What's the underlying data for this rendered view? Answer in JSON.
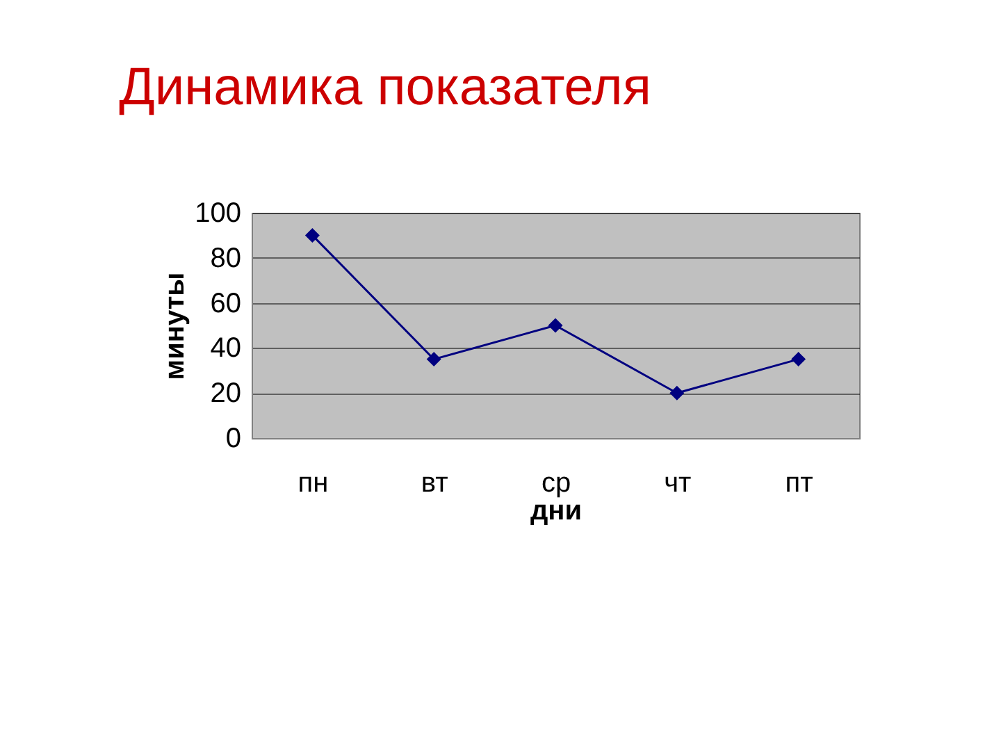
{
  "chart_data": {
    "type": "line",
    "title": "Динамика показателя",
    "xlabel": "дни",
    "ylabel": "минуты",
    "categories": [
      "пн",
      "вт",
      "ср",
      "чт",
      "пт"
    ],
    "series": [
      {
        "color": "#000080",
        "values": [
          90,
          35,
          50,
          20,
          35
        ]
      }
    ],
    "ylim": [
      0,
      100
    ],
    "yticks": [
      0,
      20,
      40,
      60,
      80,
      100
    ],
    "grid": "y",
    "marker": "diamond",
    "line_style": "solid"
  }
}
